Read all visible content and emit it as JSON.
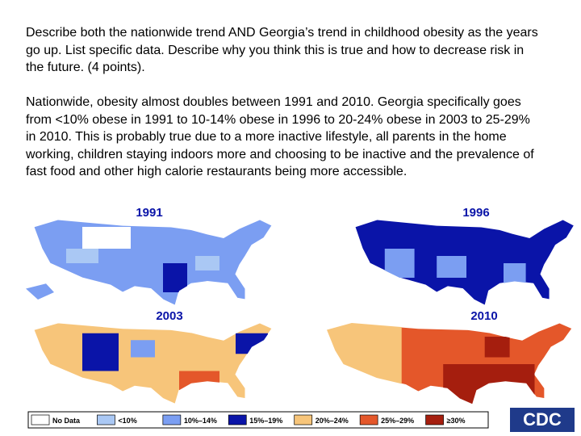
{
  "question": "Describe both the nationwide trend AND Georgia’s trend in childhood obesity as the years go up. List specific data.  Describe why you think this is true and how to decrease risk in the future. (4 points).",
  "answer": "Nationwide, obesity almost doubles between 1991 and 2010.  Georgia specifically goes from <10% obese in 1991 to 10-14% obese in 1996 to 20-24% obese in 2003 to 25-29% in 2010.  This is probably true due to a more inactive lifestyle, all parents in the home working, children staying indoors more and choosing to be inactive and the prevalence of fast food and other high calorie restaurants being more accessible.",
  "maps": [
    {
      "year": "1991"
    },
    {
      "year": "1996"
    },
    {
      "year": "2003"
    },
    {
      "year": "2010"
    }
  ],
  "legend": [
    "No Data",
    "<10%",
    "10%–14%",
    "15%–19%",
    "20%–24%",
    "25%–29%",
    "≥30%"
  ],
  "logo": "CDC"
}
